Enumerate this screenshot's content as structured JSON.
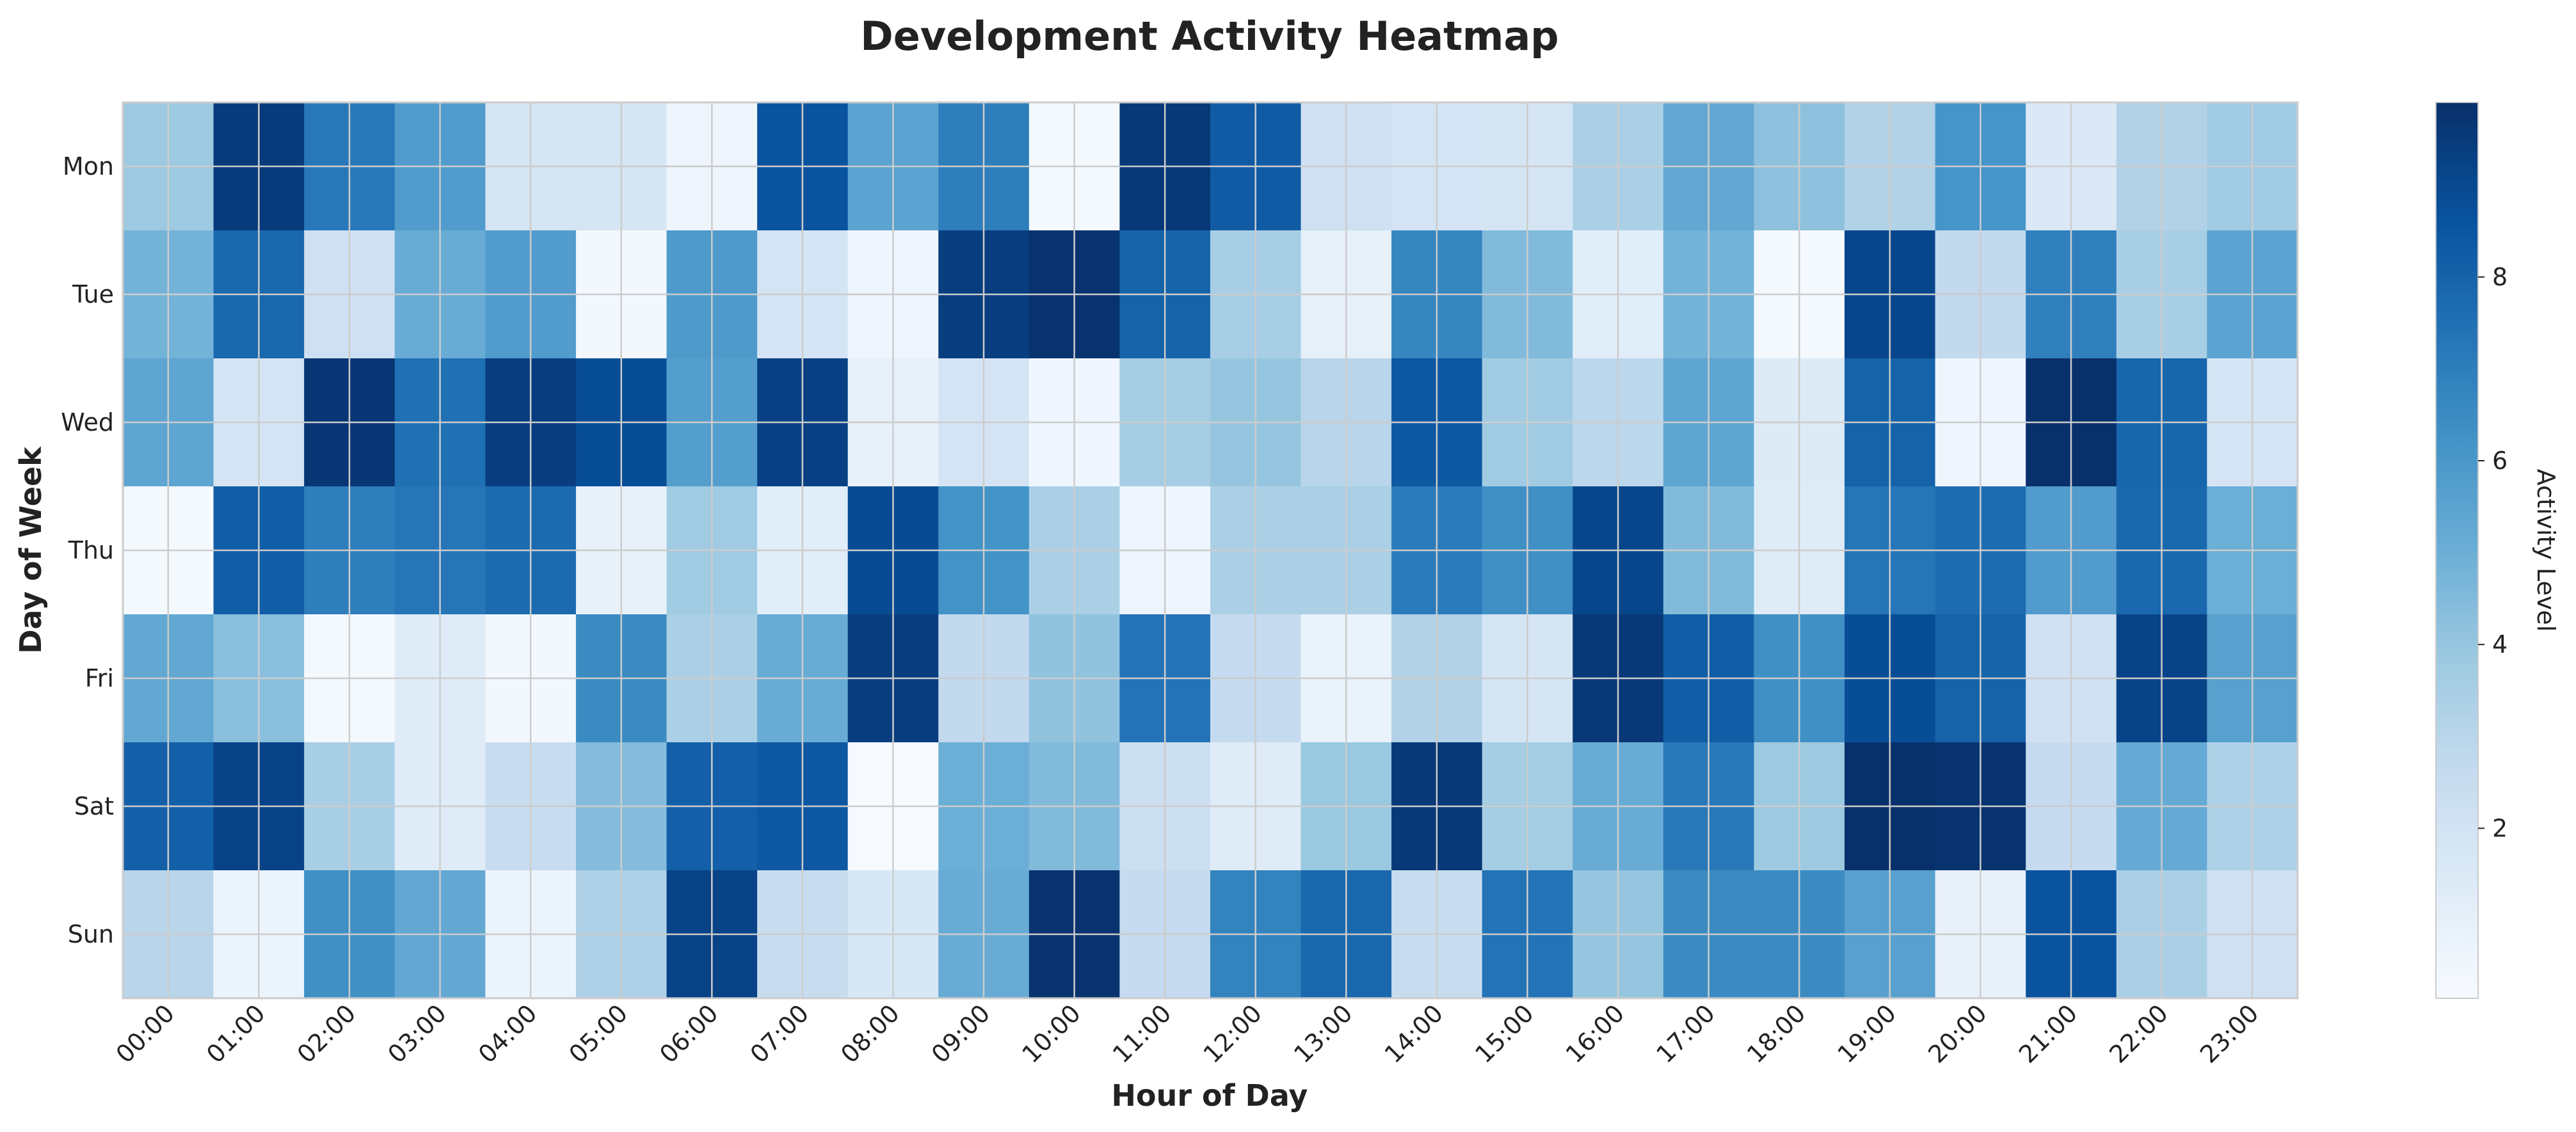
{
  "chart_data": {
    "type": "heatmap",
    "title": "Development Activity Heatmap",
    "xlabel": "Hour of Day",
    "ylabel": "Day of Week",
    "x": [
      "00:00",
      "01:00",
      "02:00",
      "03:00",
      "04:00",
      "05:00",
      "06:00",
      "07:00",
      "08:00",
      "09:00",
      "10:00",
      "11:00",
      "12:00",
      "13:00",
      "14:00",
      "15:00",
      "16:00",
      "17:00",
      "18:00",
      "19:00",
      "20:00",
      "21:00",
      "22:00",
      "23:00"
    ],
    "y": [
      "Mon",
      "Tue",
      "Wed",
      "Thu",
      "Fri",
      "Sat",
      "Sun"
    ],
    "values": [
      [
        3.8,
        9.5,
        7.2,
        5.8,
        1.8,
        1.8,
        0.6,
        8.6,
        5.5,
        7.0,
        0.3,
        9.6,
        8.3,
        2.2,
        1.9,
        1.8,
        3.4,
        5.3,
        4.2,
        3.2,
        6.1,
        1.5,
        3.2,
        3.7
      ],
      [
        4.8,
        7.8,
        2.2,
        5.1,
        5.8,
        0.4,
        5.9,
        1.9,
        0.6,
        9.4,
        9.8,
        8.0,
        3.5,
        1.0,
        6.7,
        4.5,
        1.2,
        4.8,
        0.3,
        9.1,
        2.7,
        6.9,
        3.5,
        5.5
      ],
      [
        5.4,
        1.9,
        9.7,
        7.5,
        9.4,
        8.8,
        5.7,
        9.3,
        0.9,
        1.9,
        0.5,
        3.6,
        4.0,
        3.0,
        8.4,
        3.7,
        2.9,
        5.4,
        1.4,
        8.0,
        0.6,
        9.9,
        7.9,
        1.9
      ],
      [
        0.3,
        8.2,
        7.0,
        7.3,
        7.7,
        0.9,
        3.7,
        1.2,
        8.9,
        6.2,
        3.4,
        0.6,
        3.4,
        3.4,
        7.1,
        6.3,
        9.1,
        4.5,
        1.3,
        7.3,
        7.6,
        5.8,
        7.8,
        5.0
      ],
      [
        5.3,
        4.3,
        0.3,
        1.3,
        0.4,
        6.5,
        3.4,
        5.1,
        9.4,
        2.7,
        4.1,
        7.4,
        2.6,
        0.8,
        3.2,
        1.8,
        9.6,
        8.2,
        6.3,
        8.8,
        8.0,
        2.1,
        9.2,
        5.6
      ],
      [
        8.1,
        9.2,
        3.5,
        1.3,
        2.5,
        4.4,
        8.1,
        8.4,
        0.2,
        5.0,
        4.5,
        2.3,
        1.3,
        3.9,
        9.6,
        3.6,
        5.1,
        7.2,
        3.8,
        9.9,
        9.8,
        2.6,
        5.2,
        3.3
      ],
      [
        3.0,
        0.7,
        6.3,
        5.3,
        0.7,
        3.3,
        9.2,
        2.5,
        1.7,
        5.1,
        9.8,
        2.6,
        6.8,
        7.8,
        2.5,
        7.4,
        4.0,
        6.5,
        6.5,
        5.6,
        0.9,
        8.6,
        3.4,
        2.2
      ]
    ],
    "vmin": 0.15,
    "vmax": 9.9,
    "colormap": "Blues",
    "colorbar": {
      "label": "Activity Level",
      "ticks": [
        2,
        4,
        6,
        8
      ]
    },
    "grid": true,
    "grid_color": "#cccccc"
  }
}
